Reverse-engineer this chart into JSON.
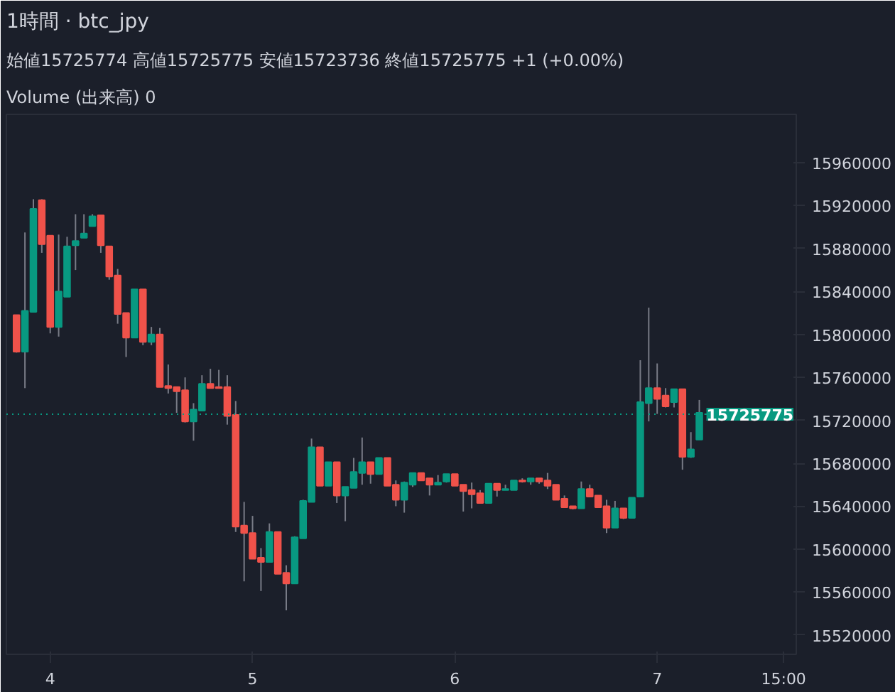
{
  "chart_data": {
    "type": "candlestick",
    "title": "1時間 · btc_jpy",
    "subtitle": "始値15725774 高値15725775 安値15723736 終値15725775 +1 (+0.00%)",
    "annotations": [
      "Volume (出来高) 0"
    ],
    "categories": [
      null,
      null,
      null,
      null,
      "4",
      null,
      null,
      null,
      null,
      null,
      null,
      null,
      null,
      null,
      null,
      null,
      null,
      null,
      null,
      null,
      null,
      null,
      null,
      null,
      null,
      null,
      null,
      null,
      "5",
      null,
      null,
      null,
      null,
      null,
      null,
      null,
      null,
      null,
      null,
      null,
      null,
      null,
      null,
      null,
      null,
      null,
      null,
      null,
      null,
      null,
      null,
      null,
      "6",
      null,
      null,
      null,
      null,
      null,
      null,
      null,
      null,
      null,
      null,
      null,
      null,
      null,
      null,
      null,
      null,
      null,
      null,
      null,
      null,
      null,
      null,
      null,
      "7",
      null,
      null,
      null,
      null,
      null,
      null,
      null,
      null,
      null,
      null,
      null,
      null,
      null,
      null,
      "15:00",
      null
    ],
    "ohlc": [
      [
        15818000,
        15818000,
        15783000,
        15784000
      ],
      [
        15784000,
        15895000,
        15750000,
        15822000
      ],
      [
        15821000,
        15926000,
        15821000,
        15917000
      ],
      [
        15925000,
        15926000,
        15876000,
        15884000
      ],
      [
        15892000,
        15892000,
        15801000,
        15807000
      ],
      [
        15807000,
        15893000,
        15798000,
        15840000
      ],
      [
        15835000,
        15891000,
        15835000,
        15882000
      ],
      [
        15883000,
        15912000,
        15860000,
        15887000
      ],
      [
        15890000,
        15912000,
        15890000,
        15894000
      ],
      [
        15901000,
        15912000,
        15901000,
        15910000
      ],
      [
        15911000,
        15911000,
        15876000,
        15883000
      ],
      [
        15882000,
        15882000,
        15851000,
        15854000
      ],
      [
        15855000,
        15861000,
        15810000,
        15819000
      ],
      [
        15820000,
        15820000,
        15779000,
        15797000
      ],
      [
        15797000,
        15842000,
        15797000,
        15842000
      ],
      [
        15842000,
        15842000,
        15790000,
        15793000
      ],
      [
        15793000,
        15807000,
        15790000,
        15800000
      ],
      [
        15800000,
        15806000,
        15751000,
        15751000
      ],
      [
        15752000,
        15772000,
        15745000,
        15750000
      ],
      [
        15751000,
        15751000,
        15727000,
        15747000
      ],
      [
        15748000,
        15760000,
        15718000,
        15719000
      ],
      [
        15719000,
        15736000,
        15701000,
        15730000
      ],
      [
        15729000,
        15762000,
        15729000,
        15754000
      ],
      [
        15754000,
        15768000,
        15750000,
        15750000
      ],
      [
        15751000,
        15767000,
        15750000,
        15750000
      ],
      [
        15751000,
        15762000,
        15716000,
        15724000
      ],
      [
        15725000,
        15738000,
        15616000,
        15621000
      ],
      [
        15622000,
        15644000,
        15570000,
        15615000
      ],
      [
        15615000,
        15631000,
        15591000,
        15591000
      ],
      [
        15592000,
        15601000,
        15561000,
        15588000
      ],
      [
        15588000,
        15624000,
        15588000,
        15616000
      ],
      [
        15616000,
        15616000,
        15577000,
        15577000
      ],
      [
        15578000,
        15585000,
        15543000,
        15568000
      ],
      [
        15568000,
        15612000,
        15568000,
        15611000
      ],
      [
        15610000,
        15646000,
        15610000,
        15645000
      ],
      [
        15644000,
        15703000,
        15644000,
        15695000
      ],
      [
        15695000,
        15695000,
        15659000,
        15659000
      ],
      [
        15659000,
        15681000,
        15659000,
        15681000
      ],
      [
        15681000,
        15681000,
        15643000,
        15650000
      ],
      [
        15650000,
        15658000,
        15626000,
        15658000
      ],
      [
        15657000,
        15685000,
        15657000,
        15672000
      ],
      [
        15671000,
        15704000,
        15660000,
        15681000
      ],
      [
        15681000,
        15681000,
        15661000,
        15670000
      ],
      [
        15670000,
        15685000,
        15670000,
        15685000
      ],
      [
        15685000,
        15685000,
        15659000,
        15659000
      ],
      [
        15660000,
        15664000,
        15640000,
        15646000
      ],
      [
        15646000,
        15663000,
        15634000,
        15662000
      ],
      [
        15660000,
        15671000,
        15658000,
        15671000
      ],
      [
        15671000,
        15671000,
        15664000,
        15664000
      ],
      [
        15666000,
        15666000,
        15650000,
        15660000
      ],
      [
        15660000,
        15669000,
        15660000,
        15662000
      ],
      [
        15663000,
        15670000,
        15662000,
        15670000
      ],
      [
        15670000,
        15670000,
        15659000,
        15659000
      ],
      [
        15660000,
        15660000,
        15635000,
        15654000
      ],
      [
        15655000,
        15662000,
        15638000,
        15651000
      ],
      [
        15652000,
        15655000,
        15643000,
        15643000
      ],
      [
        15643000,
        15661000,
        15643000,
        15661000
      ],
      [
        15661000,
        15661000,
        15649000,
        15655000
      ],
      [
        15655000,
        15660000,
        15655000,
        15656000
      ],
      [
        15655000,
        15664000,
        15655000,
        15664000
      ],
      [
        15664000,
        15666000,
        15662000,
        15663000
      ],
      [
        15663000,
        15666000,
        15660000,
        15666000
      ],
      [
        15666000,
        15666000,
        15661000,
        15663000
      ],
      [
        15664000,
        15671000,
        15656000,
        15659000
      ],
      [
        15660000,
        15660000,
        15646000,
        15646000
      ],
      [
        15647000,
        15650000,
        15639000,
        15639000
      ],
      [
        15640000,
        15640000,
        15637000,
        15638000
      ],
      [
        15638000,
        15663000,
        15638000,
        15656000
      ],
      [
        15656000,
        15660000,
        15649000,
        15649000
      ],
      [
        15650000,
        15650000,
        15639000,
        15639000
      ],
      [
        15640000,
        15646000,
        15615000,
        15620000
      ],
      [
        15620000,
        15645000,
        15620000,
        15638000
      ],
      [
        15638000,
        15638000,
        15628000,
        15629000
      ],
      [
        15629000,
        15648000,
        15629000,
        15648000
      ],
      [
        15649000,
        15776000,
        15649000,
        15737000
      ],
      [
        15736000,
        15825000,
        15719000,
        15750000
      ],
      [
        15750000,
        15773000,
        15726000,
        15740000
      ],
      [
        15743000,
        15750000,
        15732000,
        15733000
      ],
      [
        15737000,
        15749000,
        15732000,
        15749000
      ],
      [
        15749000,
        15749000,
        15674000,
        15686000
      ],
      [
        15686000,
        15709000,
        15685000,
        15693000
      ],
      [
        15702000,
        15739000,
        15702000,
        15727000
      ],
      [
        15725774,
        15725775,
        15723736,
        15725775
      ],
      null,
      null,
      null,
      null,
      null,
      null,
      null,
      null,
      null,
      null
    ],
    "ylim": [
      15502000,
      16005000
    ],
    "yticks": [
      15520000,
      15560000,
      15600000,
      15640000,
      15680000,
      15720000,
      15760000,
      15800000,
      15840000,
      15880000,
      15920000,
      15960000
    ],
    "ref_lines": [
      {
        "axis": "y",
        "value": 15725775,
        "label": "15725775",
        "color": "#089981",
        "line_style": "dotted"
      }
    ],
    "grid": false
  }
}
